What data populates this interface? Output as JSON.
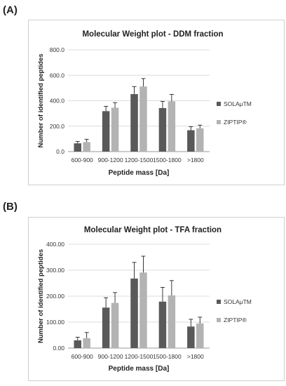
{
  "panels": [
    {
      "label": "(A)"
    },
    {
      "label": "(B)"
    }
  ],
  "chart_data": [
    {
      "type": "bar",
      "title": "Molecular Weight plot - DDM fraction",
      "xlabel": "Peptide mass [Da]",
      "ylabel": "Number of identified peptides",
      "categories": [
        "600-900",
        "900-1200",
        "1200-1500",
        "1500-1800",
        ">1800"
      ],
      "ylim": [
        0,
        800
      ],
      "yticks": [
        "0.0",
        "200.0",
        "400.0",
        "600.0",
        "800.0"
      ],
      "ytick_values": [
        0,
        200,
        400,
        600,
        800
      ],
      "series": [
        {
          "name": "SOLAμTM",
          "color": "#595959",
          "values": [
            65,
            318,
            452,
            342,
            168
          ],
          "errors": [
            15,
            38,
            58,
            52,
            28
          ]
        },
        {
          "name": "ZIPTIP®",
          "color": "#b3b3b3",
          "values": [
            75,
            345,
            512,
            395,
            183
          ],
          "errors": [
            22,
            40,
            62,
            55,
            25
          ]
        }
      ],
      "grid": true,
      "legend": "right"
    },
    {
      "type": "bar",
      "title": "Molecular Weight plot - TFA fraction",
      "xlabel": "Peptide mass [Da]",
      "ylabel": "Number of identified peptides",
      "categories": [
        "600-900",
        "900-1200",
        "1200-1500",
        "1500-1800",
        ">1800"
      ],
      "ylim": [
        0,
        400
      ],
      "yticks": [
        "0.00",
        "100.00",
        "200.00",
        "300.00",
        "400.00"
      ],
      "ytick_values": [
        0,
        100,
        200,
        300,
        400
      ],
      "series": [
        {
          "name": "SOLAμTM",
          "color": "#595959",
          "values": [
            30,
            156,
            268,
            179,
            83
          ],
          "errors": [
            12,
            38,
            62,
            55,
            28
          ]
        },
        {
          "name": "ZIPTIP®",
          "color": "#b3b3b3",
          "values": [
            38,
            174,
            291,
            203,
            95
          ],
          "errors": [
            22,
            40,
            63,
            57,
            24
          ]
        }
      ],
      "grid": true,
      "legend": "right"
    }
  ]
}
